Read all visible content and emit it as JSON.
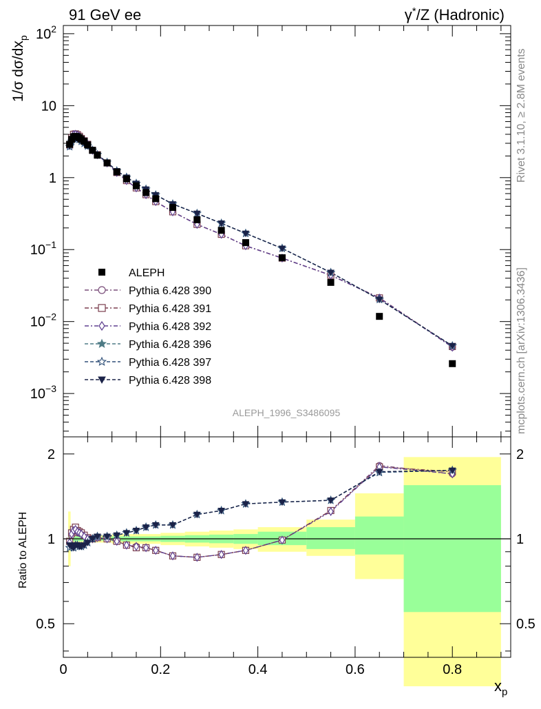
{
  "header": {
    "left_label": "91 GeV ee",
    "right_label_prefix": "γ",
    "right_label_sup": "*",
    "right_label_suffix": "/Z (Hadronic)"
  },
  "side_text": {
    "rivet": "Rivet 3.1.10, ≥ 2.8M events",
    "mcplots": "mcplots.cern.ch [arXiv:1306.3436]"
  },
  "watermark": "ALEPH_1996_S3486095",
  "ratio_ylabel": "Ratio to ALEPH",
  "chart_data": [
    {
      "type": "scatter",
      "scale": "log",
      "ylabel": "1/σ dσ/dx_p",
      "ylim": [
        0.00025,
        130
      ],
      "xlim": [
        0,
        0.92
      ],
      "y_ticks": [
        {
          "value": 0.001,
          "base": "10",
          "exp": "−3"
        },
        {
          "value": 0.01,
          "base": "10",
          "exp": "−2"
        },
        {
          "value": 0.1,
          "base": "10",
          "exp": "−1"
        },
        {
          "value": 1,
          "base": "1",
          "exp": ""
        },
        {
          "value": 10,
          "base": "10",
          "exp": ""
        },
        {
          "value": 100,
          "base": "10",
          "exp": "2"
        }
      ],
      "x": [
        0.013,
        0.017,
        0.021,
        0.025,
        0.029,
        0.033,
        0.037,
        0.043,
        0.05,
        0.06,
        0.07,
        0.09,
        0.11,
        0.13,
        0.15,
        0.17,
        0.19,
        0.225,
        0.275,
        0.325,
        0.375,
        0.45,
        0.55,
        0.65,
        0.8
      ],
      "data": {
        "name": "ALEPH",
        "values": [
          2.9,
          3.4,
          3.7,
          3.75,
          3.7,
          3.6,
          3.4,
          3.2,
          2.85,
          2.4,
          2.05,
          1.6,
          1.2,
          0.96,
          0.77,
          0.62,
          0.51,
          0.385,
          0.26,
          0.185,
          0.125,
          0.077,
          0.035,
          0.0118,
          0.0026
        ]
      },
      "series": [
        {
          "name": "Pythia 6.428 390",
          "marker": "circle-open",
          "color": "#7a4d7a",
          "dash": "6,3,2,3",
          "values": [
            2.8,
            3.55,
            3.95,
            4.0,
            3.9,
            3.75,
            3.5,
            3.25,
            2.9,
            2.4,
            2.08,
            1.6,
            1.18,
            0.91,
            0.72,
            0.58,
            0.465,
            0.335,
            0.224,
            0.163,
            0.113,
            0.0762,
            0.044,
            0.0215,
            0.0044
          ]
        },
        {
          "name": "Pythia 6.428 391",
          "marker": "square-open",
          "color": "#7a3d4e",
          "dash": "6,3,2,3",
          "values": [
            2.85,
            3.6,
            4.0,
            4.05,
            3.95,
            3.75,
            3.5,
            3.25,
            2.9,
            2.4,
            2.08,
            1.6,
            1.18,
            0.91,
            0.72,
            0.58,
            0.465,
            0.335,
            0.224,
            0.163,
            0.113,
            0.0762,
            0.044,
            0.0213,
            0.0045
          ]
        },
        {
          "name": "Pythia 6.428 392",
          "marker": "diamond-open",
          "color": "#5e3f8f",
          "dash": "6,3,2,3",
          "values": [
            2.8,
            3.55,
            3.95,
            4.0,
            3.9,
            3.75,
            3.5,
            3.25,
            2.9,
            2.4,
            2.08,
            1.6,
            1.18,
            0.91,
            0.72,
            0.58,
            0.465,
            0.335,
            0.224,
            0.163,
            0.113,
            0.0762,
            0.044,
            0.0212,
            0.0044
          ]
        },
        {
          "name": "Pythia 6.428 396",
          "marker": "star-filled",
          "color": "#4d7a85",
          "dash": "5,3",
          "values": [
            2.7,
            3.2,
            3.45,
            3.55,
            3.5,
            3.4,
            3.2,
            3.0,
            2.75,
            2.4,
            2.08,
            1.63,
            1.24,
            1.01,
            0.83,
            0.69,
            0.575,
            0.43,
            0.318,
            0.232,
            0.168,
            0.104,
            0.048,
            0.0203,
            0.0046
          ]
        },
        {
          "name": "Pythia 6.428 397",
          "marker": "star-open",
          "color": "#2e4f78",
          "dash": "5,3",
          "values": [
            2.7,
            3.2,
            3.45,
            3.55,
            3.5,
            3.4,
            3.2,
            3.0,
            2.75,
            2.4,
            2.08,
            1.63,
            1.24,
            1.01,
            0.83,
            0.69,
            0.575,
            0.43,
            0.318,
            0.232,
            0.168,
            0.104,
            0.048,
            0.0203,
            0.0046
          ]
        },
        {
          "name": "Pythia 6.428 398",
          "marker": "triangle-down-filled",
          "color": "#1b2348",
          "dash": "5,3",
          "values": [
            2.75,
            3.25,
            3.45,
            3.55,
            3.5,
            3.4,
            3.2,
            3.0,
            2.75,
            2.4,
            2.08,
            1.63,
            1.24,
            1.01,
            0.83,
            0.69,
            0.575,
            0.43,
            0.318,
            0.232,
            0.168,
            0.104,
            0.048,
            0.0203,
            0.0046
          ]
        }
      ],
      "legend_position": "bottom-left"
    },
    {
      "type": "scatter",
      "scale": "log",
      "ylabel": "Ratio to ALEPH",
      "xlabel": "x_p",
      "ylim": [
        0.38,
        2.3
      ],
      "xlim": [
        0,
        0.92
      ],
      "y_ticks": [
        {
          "value": 0.5,
          "label": "0.5"
        },
        {
          "value": 1,
          "label": "1"
        },
        {
          "value": 2,
          "label": "2"
        }
      ],
      "x_ticks": [
        {
          "value": 0,
          "label": "0"
        },
        {
          "value": 0.2,
          "label": "0.2"
        },
        {
          "value": 0.4,
          "label": "0.4"
        },
        {
          "value": 0.6,
          "label": "0.6"
        },
        {
          "value": 0.8,
          "label": "0.8"
        }
      ],
      "bands": [
        {
          "x0": 0.01,
          "x1": 0.015,
          "inner": [
            0.92,
            1.08
          ],
          "outer": [
            0.8,
            1.25
          ]
        },
        {
          "x0": 0.015,
          "x1": 0.02,
          "inner": [
            0.96,
            1.04
          ],
          "outer": [
            0.93,
            1.07
          ]
        },
        {
          "x0": 0.02,
          "x1": 0.04,
          "inner": [
            0.98,
            1.02
          ],
          "outer": [
            0.96,
            1.04
          ]
        },
        {
          "x0": 0.04,
          "x1": 0.1,
          "inner": [
            0.985,
            1.015
          ],
          "outer": [
            0.97,
            1.03
          ]
        },
        {
          "x0": 0.1,
          "x1": 0.2,
          "inner": [
            0.98,
            1.02
          ],
          "outer": [
            0.96,
            1.04
          ]
        },
        {
          "x0": 0.2,
          "x1": 0.25,
          "inner": [
            0.975,
            1.025
          ],
          "outer": [
            0.95,
            1.05
          ]
        },
        {
          "x0": 0.25,
          "x1": 0.3,
          "inner": [
            0.97,
            1.03
          ],
          "outer": [
            0.94,
            1.06
          ]
        },
        {
          "x0": 0.3,
          "x1": 0.35,
          "inner": [
            0.965,
            1.035
          ],
          "outer": [
            0.93,
            1.07
          ]
        },
        {
          "x0": 0.35,
          "x1": 0.4,
          "inner": [
            0.96,
            1.04
          ],
          "outer": [
            0.92,
            1.08
          ]
        },
        {
          "x0": 0.4,
          "x1": 0.5,
          "inner": [
            0.95,
            1.06
          ],
          "outer": [
            0.9,
            1.1
          ]
        },
        {
          "x0": 0.5,
          "x1": 0.6,
          "inner": [
            0.92,
            1.1
          ],
          "outer": [
            0.87,
            1.17
          ]
        },
        {
          "x0": 0.6,
          "x1": 0.7,
          "inner": [
            0.88,
            1.2
          ],
          "outer": [
            0.72,
            1.45
          ]
        },
        {
          "x0": 0.7,
          "x1": 0.9,
          "inner": [
            0.55,
            1.55
          ],
          "outer": [
            0.3,
            1.95
          ]
        }
      ],
      "x": [
        0.013,
        0.017,
        0.021,
        0.025,
        0.029,
        0.033,
        0.037,
        0.043,
        0.05,
        0.06,
        0.07,
        0.09,
        0.11,
        0.13,
        0.15,
        0.17,
        0.19,
        0.225,
        0.275,
        0.325,
        0.375,
        0.45,
        0.55,
        0.65,
        0.8
      ],
      "series": [
        {
          "name": "Pythia 6.428 390",
          "values": [
            0.97,
            1.03,
            1.08,
            1.08,
            1.05,
            1.06,
            1.05,
            1.03,
            1.0,
            1.0,
            1.01,
            1.0,
            0.98,
            0.95,
            0.94,
            0.93,
            0.91,
            0.87,
            0.86,
            0.88,
            0.91,
            0.99,
            1.26,
            1.82,
            1.7
          ]
        },
        {
          "name": "Pythia 6.428 391",
          "values": [
            0.98,
            1.05,
            1.08,
            1.1,
            1.07,
            1.06,
            1.05,
            1.03,
            1.01,
            1.0,
            1.01,
            1.0,
            0.98,
            0.95,
            0.93,
            0.93,
            0.91,
            0.87,
            0.86,
            0.88,
            0.91,
            0.99,
            1.26,
            1.8,
            1.73
          ]
        },
        {
          "name": "Pythia 6.428 392",
          "values": [
            0.97,
            1.04,
            1.07,
            1.08,
            1.06,
            1.05,
            1.04,
            1.02,
            1.0,
            1.0,
            1.01,
            1.0,
            0.98,
            0.95,
            0.94,
            0.93,
            0.91,
            0.87,
            0.86,
            0.88,
            0.91,
            0.99,
            1.25,
            1.8,
            1.7
          ]
        },
        {
          "name": "Pythia 6.428 396",
          "values": [
            0.93,
            0.94,
            0.93,
            0.95,
            0.95,
            0.94,
            0.94,
            0.95,
            0.97,
            1.0,
            1.02,
            1.02,
            1.03,
            1.05,
            1.07,
            1.1,
            1.12,
            1.12,
            1.22,
            1.26,
            1.33,
            1.35,
            1.37,
            1.72,
            1.75
          ]
        },
        {
          "name": "Pythia 6.428 397",
          "values": [
            0.93,
            0.94,
            0.93,
            0.95,
            0.95,
            0.94,
            0.94,
            0.95,
            0.97,
            1.0,
            1.02,
            1.02,
            1.03,
            1.05,
            1.07,
            1.1,
            1.12,
            1.12,
            1.22,
            1.26,
            1.33,
            1.35,
            1.37,
            1.72,
            1.75
          ]
        },
        {
          "name": "Pythia 6.428 398",
          "values": [
            0.95,
            0.94,
            0.93,
            0.95,
            0.95,
            0.94,
            0.94,
            0.95,
            0.97,
            1.0,
            1.02,
            1.02,
            1.03,
            1.05,
            1.07,
            1.1,
            1.12,
            1.12,
            1.22,
            1.26,
            1.33,
            1.35,
            1.37,
            1.73,
            1.75
          ]
        }
      ]
    }
  ]
}
